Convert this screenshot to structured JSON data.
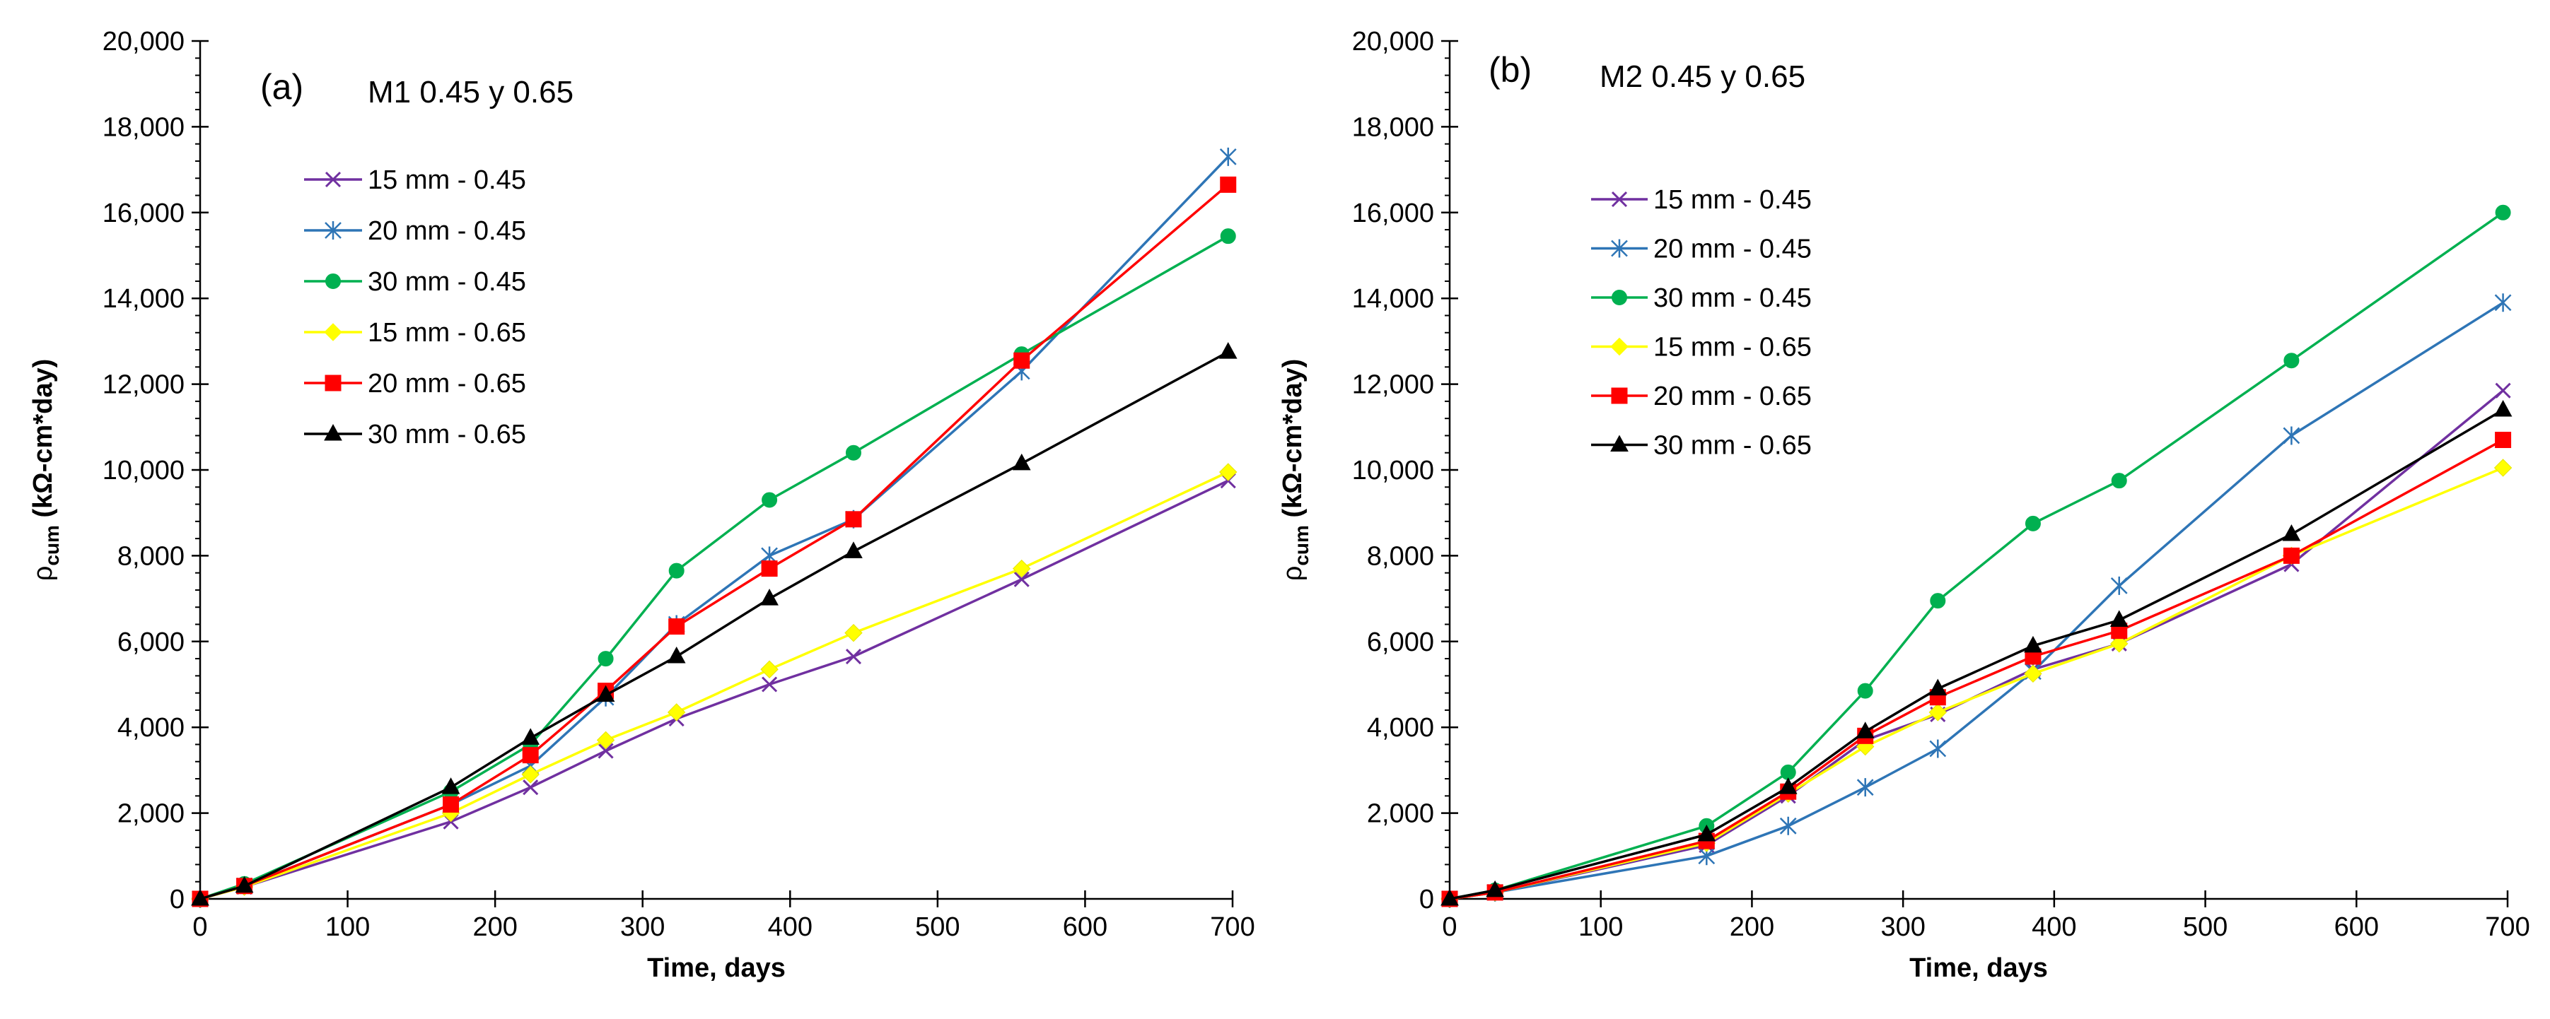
{
  "chart_data": [
    {
      "type": "line",
      "panel_label": "(a)",
      "title": "M1 0.45 y 0.65",
      "xlabel": "Time, days",
      "ylabel_symbol": "ρ",
      "ylabel_sub": "cum",
      "ylabel_rest": " (kΩ-cm*day)",
      "xlim": [
        0,
        700
      ],
      "ylim": [
        0,
        20000
      ],
      "xticks": [
        0,
        100,
        200,
        300,
        400,
        500,
        600,
        700
      ],
      "xtick_labels": [
        "0",
        "100",
        "200",
        "300",
        "400",
        "500",
        "600",
        "700"
      ],
      "yticks": [
        0,
        2000,
        4000,
        6000,
        8000,
        10000,
        12000,
        14000,
        16000,
        18000,
        20000
      ],
      "ytick_labels": [
        "0",
        "2,000",
        "4,000",
        "6,000",
        "8,000",
        "10,000",
        "12,000",
        "14,000",
        "16,000",
        "18,000",
        "20,000"
      ],
      "grid": false,
      "legend_position": "upper-left",
      "x": [
        0,
        30,
        170,
        224,
        275,
        323,
        386,
        443,
        557,
        697
      ],
      "series": [
        {
          "name": "15 mm - 0.45",
          "color": "#7030a0",
          "marker": "x",
          "values": [
            0,
            280,
            1800,
            2600,
            3450,
            4200,
            5000,
            5650,
            7450,
            9750
          ]
        },
        {
          "name": "20 mm - 0.45",
          "color": "#2e75b6",
          "marker": "star",
          "values": [
            0,
            300,
            2200,
            3100,
            4700,
            6400,
            8000,
            8850,
            12300,
            17300
          ]
        },
        {
          "name": "30 mm - 0.45",
          "color": "#00b050",
          "marker": "circle",
          "values": [
            0,
            350,
            2500,
            3600,
            5600,
            7650,
            9300,
            10400,
            12700,
            15450
          ]
        },
        {
          "name": "15 mm - 0.65",
          "color": "#ffff00",
          "marker": "diamond",
          "values": [
            0,
            280,
            2000,
            2900,
            3700,
            4350,
            5350,
            6200,
            7700,
            9950
          ]
        },
        {
          "name": "20 mm - 0.65",
          "color": "#ff0000",
          "marker": "square",
          "values": [
            0,
            300,
            2200,
            3350,
            4850,
            6350,
            7700,
            8850,
            12550,
            16650
          ]
        },
        {
          "name": "30 mm - 0.65",
          "color": "#000000",
          "marker": "triangle",
          "values": [
            0,
            300,
            2600,
            3750,
            4750,
            5650,
            7000,
            8100,
            10150,
            12750
          ]
        }
      ]
    },
    {
      "type": "line",
      "panel_label": "(b)",
      "title": "M2 0.45 y 0.65",
      "xlabel": "Time, days",
      "ylabel_symbol": "ρ",
      "ylabel_sub": "cum",
      "ylabel_rest": " (kΩ-cm*day)",
      "xlim": [
        0,
        700
      ],
      "ylim": [
        0,
        20000
      ],
      "xticks": [
        0,
        100,
        200,
        300,
        400,
        500,
        600,
        700
      ],
      "xtick_labels": [
        "0",
        "100",
        "200",
        "300",
        "400",
        "500",
        "600",
        "700"
      ],
      "yticks": [
        0,
        2000,
        4000,
        6000,
        8000,
        10000,
        12000,
        14000,
        16000,
        18000,
        20000
      ],
      "ytick_labels": [
        "0",
        "2,000",
        "4,000",
        "6,000",
        "8,000",
        "10,000",
        "12,000",
        "14,000",
        "16,000",
        "18,000",
        "20,000"
      ],
      "grid": false,
      "legend_position": "upper-left",
      "x": [
        0,
        30,
        170,
        224,
        275,
        323,
        386,
        443,
        557,
        697
      ],
      "series": [
        {
          "name": "15 mm - 0.45",
          "color": "#7030a0",
          "marker": "x",
          "values": [
            0,
            150,
            1250,
            2400,
            3700,
            4300,
            5350,
            5950,
            7800,
            11850
          ]
        },
        {
          "name": "20 mm - 0.45",
          "color": "#2e75b6",
          "marker": "star",
          "values": [
            0,
            150,
            1000,
            1700,
            2600,
            3500,
            5300,
            7300,
            10800,
            13900
          ]
        },
        {
          "name": "30 mm - 0.45",
          "color": "#00b050",
          "marker": "circle",
          "values": [
            0,
            200,
            1700,
            2950,
            4850,
            6950,
            8750,
            9750,
            12550,
            16000
          ]
        },
        {
          "name": "15 mm - 0.65",
          "color": "#ffff00",
          "marker": "diamond",
          "values": [
            0,
            150,
            1300,
            2450,
            3550,
            4350,
            5250,
            5950,
            8000,
            10050
          ]
        },
        {
          "name": "20 mm - 0.65",
          "color": "#ff0000",
          "marker": "square",
          "values": [
            0,
            150,
            1350,
            2500,
            3800,
            4700,
            5650,
            6250,
            8000,
            10700
          ]
        },
        {
          "name": "30 mm - 0.65",
          "color": "#000000",
          "marker": "triangle",
          "values": [
            0,
            200,
            1500,
            2600,
            3900,
            4900,
            5900,
            6500,
            8500,
            11400
          ]
        }
      ]
    }
  ]
}
